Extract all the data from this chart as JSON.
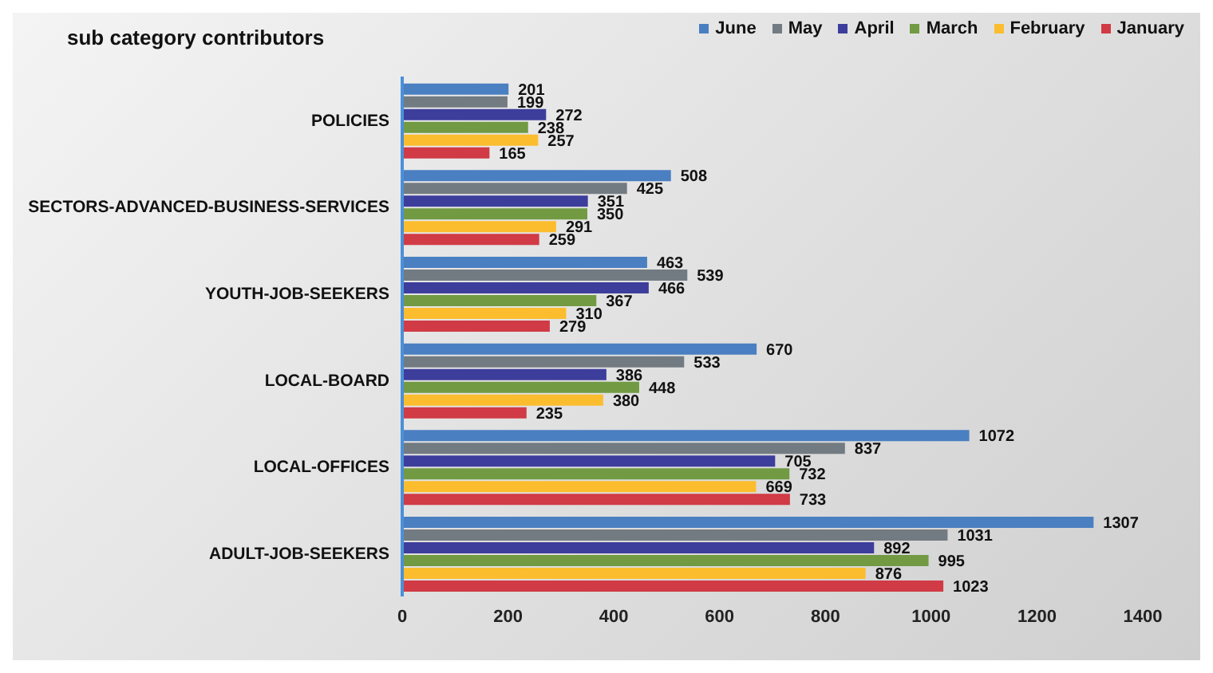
{
  "chart_data": {
    "type": "bar",
    "orientation": "horizontal",
    "title": "sub category contributors",
    "categories": [
      "POLICIES",
      "SECTORS-ADVANCED-BUSINESS-SERVICES",
      "YOUTH-JOB-SEEKERS",
      "LOCAL-BOARD",
      "LOCAL-OFFICES",
      "ADULT-JOB-SEEKERS"
    ],
    "series": [
      {
        "name": "June",
        "color": "#4a7fc1",
        "values": [
          201,
          508,
          463,
          670,
          1072,
          1307
        ]
      },
      {
        "name": "May",
        "color": "#737b82",
        "values": [
          199,
          425,
          539,
          533,
          837,
          1031
        ]
      },
      {
        "name": "April",
        "color": "#3d3d9c",
        "values": [
          272,
          351,
          466,
          386,
          705,
          892
        ]
      },
      {
        "name": "March",
        "color": "#719a43",
        "values": [
          238,
          350,
          367,
          448,
          732,
          995
        ]
      },
      {
        "name": "February",
        "color": "#fbbd2e",
        "values": [
          257,
          291,
          310,
          380,
          669,
          876
        ]
      },
      {
        "name": "January",
        "color": "#d03b45",
        "values": [
          165,
          259,
          279,
          235,
          733,
          1023
        ]
      }
    ],
    "xlim": [
      0,
      1400
    ],
    "xticks": [
      0,
      200,
      400,
      600,
      800,
      1000,
      1200,
      1400
    ],
    "grid": false,
    "legend": "top right",
    "data_labels": true
  }
}
